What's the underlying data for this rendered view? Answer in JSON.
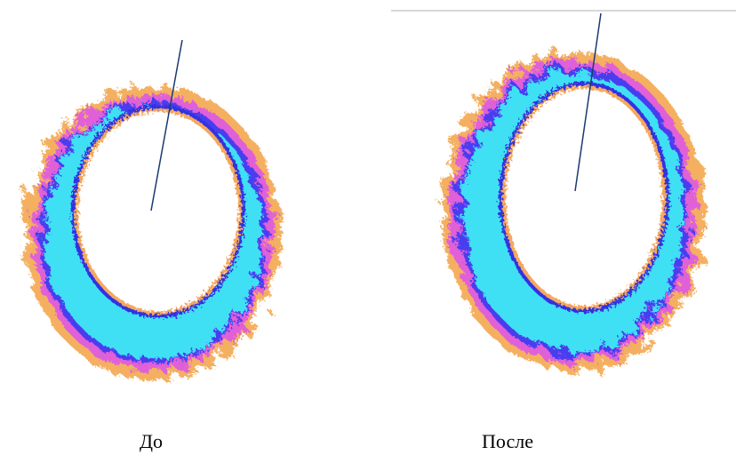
{
  "captions": {
    "before": "До",
    "after": "После"
  }
}
